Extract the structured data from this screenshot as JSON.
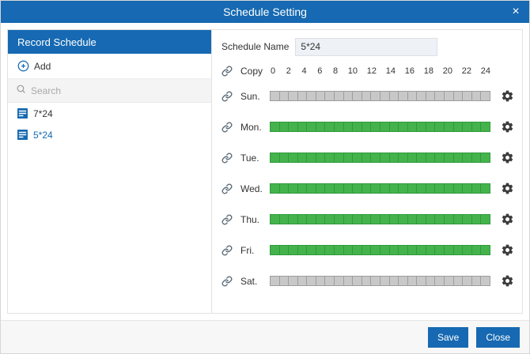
{
  "dialog": {
    "title": "Schedule Setting",
    "close_glyph": "×"
  },
  "left_panel": {
    "header": "Record Schedule",
    "add_label": "Add",
    "search_placeholder": "Search",
    "items": [
      {
        "label": "7*24",
        "selected": false
      },
      {
        "label": "5*24",
        "selected": true
      }
    ]
  },
  "right_panel": {
    "schedule_name_label": "Schedule Name",
    "schedule_name_value": "5*24",
    "copy_label": "Copy",
    "scale_ticks": [
      "0",
      "2",
      "4",
      "6",
      "8",
      "10",
      "12",
      "14",
      "16",
      "18",
      "20",
      "22",
      "24"
    ],
    "days": [
      {
        "label": "Sun.",
        "state": "empty"
      },
      {
        "label": "Mon.",
        "state": "full"
      },
      {
        "label": "Tue.",
        "state": "full"
      },
      {
        "label": "Wed.",
        "state": "full"
      },
      {
        "label": "Thu.",
        "state": "full"
      },
      {
        "label": "Fri.",
        "state": "full"
      },
      {
        "label": "Sat.",
        "state": "empty"
      }
    ]
  },
  "footer": {
    "save_label": "Save",
    "close_label": "Close"
  },
  "colors": {
    "accent": "#1669b2",
    "green": "#45b34c",
    "green-border": "#2f9a3c",
    "gray": "#c8c8c8",
    "gray-border": "#9e9e9e"
  }
}
